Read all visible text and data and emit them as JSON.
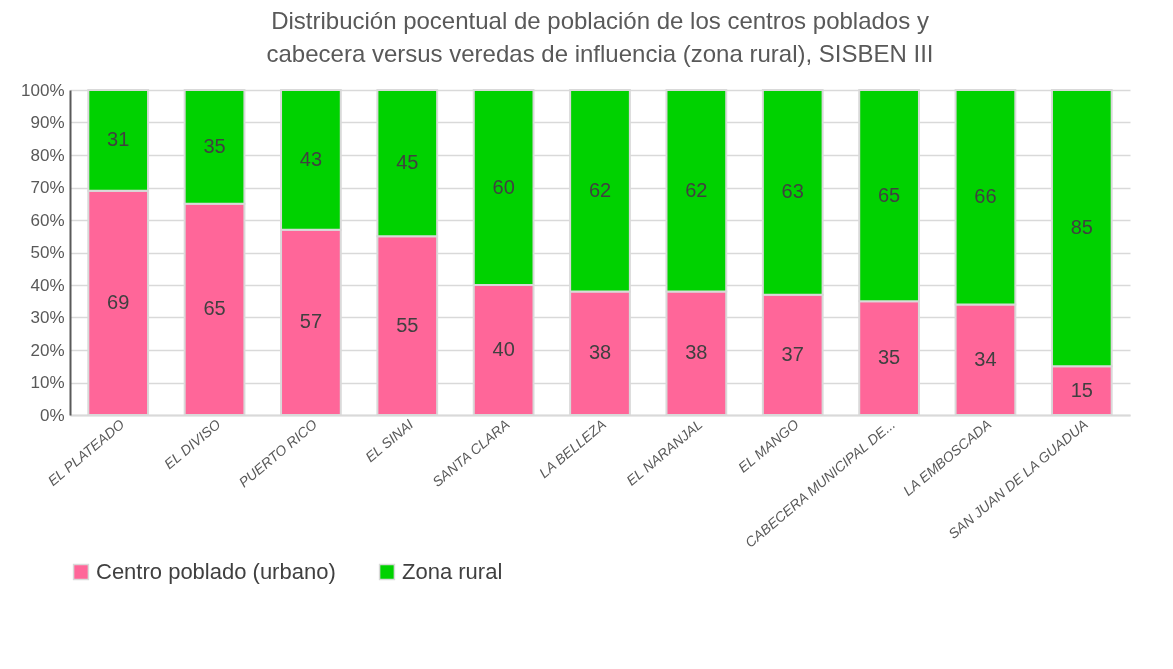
{
  "chart_data": {
    "type": "bar",
    "stacked": true,
    "title": [
      "Distribución pocentual de población de los centros poblados y",
      "cabecera versus veredas de influencia (zona rural), SISBEN III"
    ],
    "categories": [
      "EL PLATEADO",
      "EL DIVISO",
      "PUERTO RICO",
      "EL SINAI",
      "SANTA CLARA",
      "LA BELLEZA",
      "EL NARANJAL",
      "EL MANGO",
      "CABECERA MUNICIPAL DE...",
      "LA EMBOSCADA",
      "SAN JUAN DE LA GUADUA"
    ],
    "series": [
      {
        "name": "Centro poblado (urbano)",
        "color": "#ff6699",
        "values": [
          69,
          65,
          57,
          55,
          40,
          38,
          38,
          37,
          35,
          34,
          15
        ]
      },
      {
        "name": "Zona rural",
        "color": "#00d200",
        "values": [
          31,
          35,
          43,
          45,
          60,
          62,
          62,
          63,
          65,
          66,
          85
        ]
      }
    ],
    "ylim": [
      0,
      100
    ],
    "yticks": [
      {
        "value": 0,
        "label": "0%"
      },
      {
        "value": 10,
        "label": "10%"
      },
      {
        "value": 20,
        "label": "20%"
      },
      {
        "value": 30,
        "label": "30%"
      },
      {
        "value": 40,
        "label": "40%"
      },
      {
        "value": 50,
        "label": "50%"
      },
      {
        "value": 60,
        "label": "60%"
      },
      {
        "value": 70,
        "label": "70%"
      },
      {
        "value": 80,
        "label": "80%"
      },
      {
        "value": 90,
        "label": "90%"
      },
      {
        "value": 100,
        "label": "100%"
      }
    ],
    "grid": true,
    "legend": "bottom",
    "data_labels": true
  }
}
